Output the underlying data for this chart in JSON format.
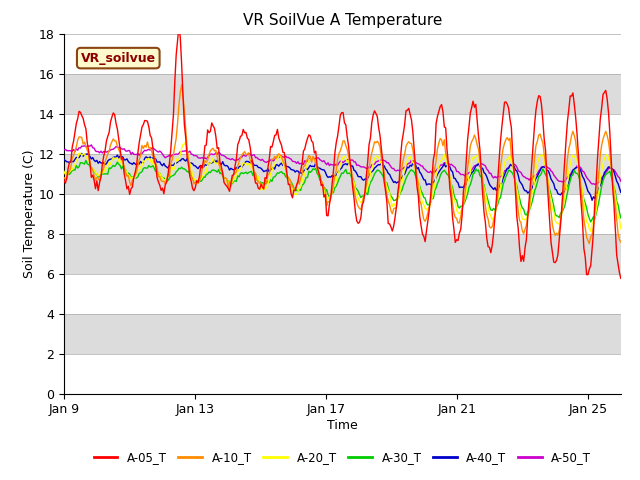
{
  "title": "VR SoilVue A Temperature",
  "xlabel": "Time",
  "ylabel": "Soil Temperature (C)",
  "ylim": [
    0,
    18
  ],
  "yticks": [
    0,
    2,
    4,
    6,
    8,
    10,
    12,
    14,
    16,
    18
  ],
  "xtick_labels": [
    "Jan 9",
    "Jan 13",
    "Jan 17",
    "Jan 21",
    "Jan 25"
  ],
  "xtick_positions": [
    0,
    4,
    8,
    12,
    16
  ],
  "legend_label": "VR_soilvue",
  "series_labels": [
    "A-05_T",
    "A-10_T",
    "A-20_T",
    "A-30_T",
    "A-40_T",
    "A-50_T"
  ],
  "series_colors": [
    "#FF0000",
    "#FF8C00",
    "#FFFF00",
    "#00CC00",
    "#0000CC",
    "#CC00CC"
  ],
  "background_color": "#FFFFFF",
  "plot_bg_color": "#DCDCDC",
  "band_white": "#FFFFFF",
  "band_grey": "#DCDCDC",
  "title_fontsize": 11,
  "axis_label_fontsize": 9,
  "tick_fontsize": 9,
  "figsize": [
    6.4,
    4.8
  ],
  "dpi": 100
}
